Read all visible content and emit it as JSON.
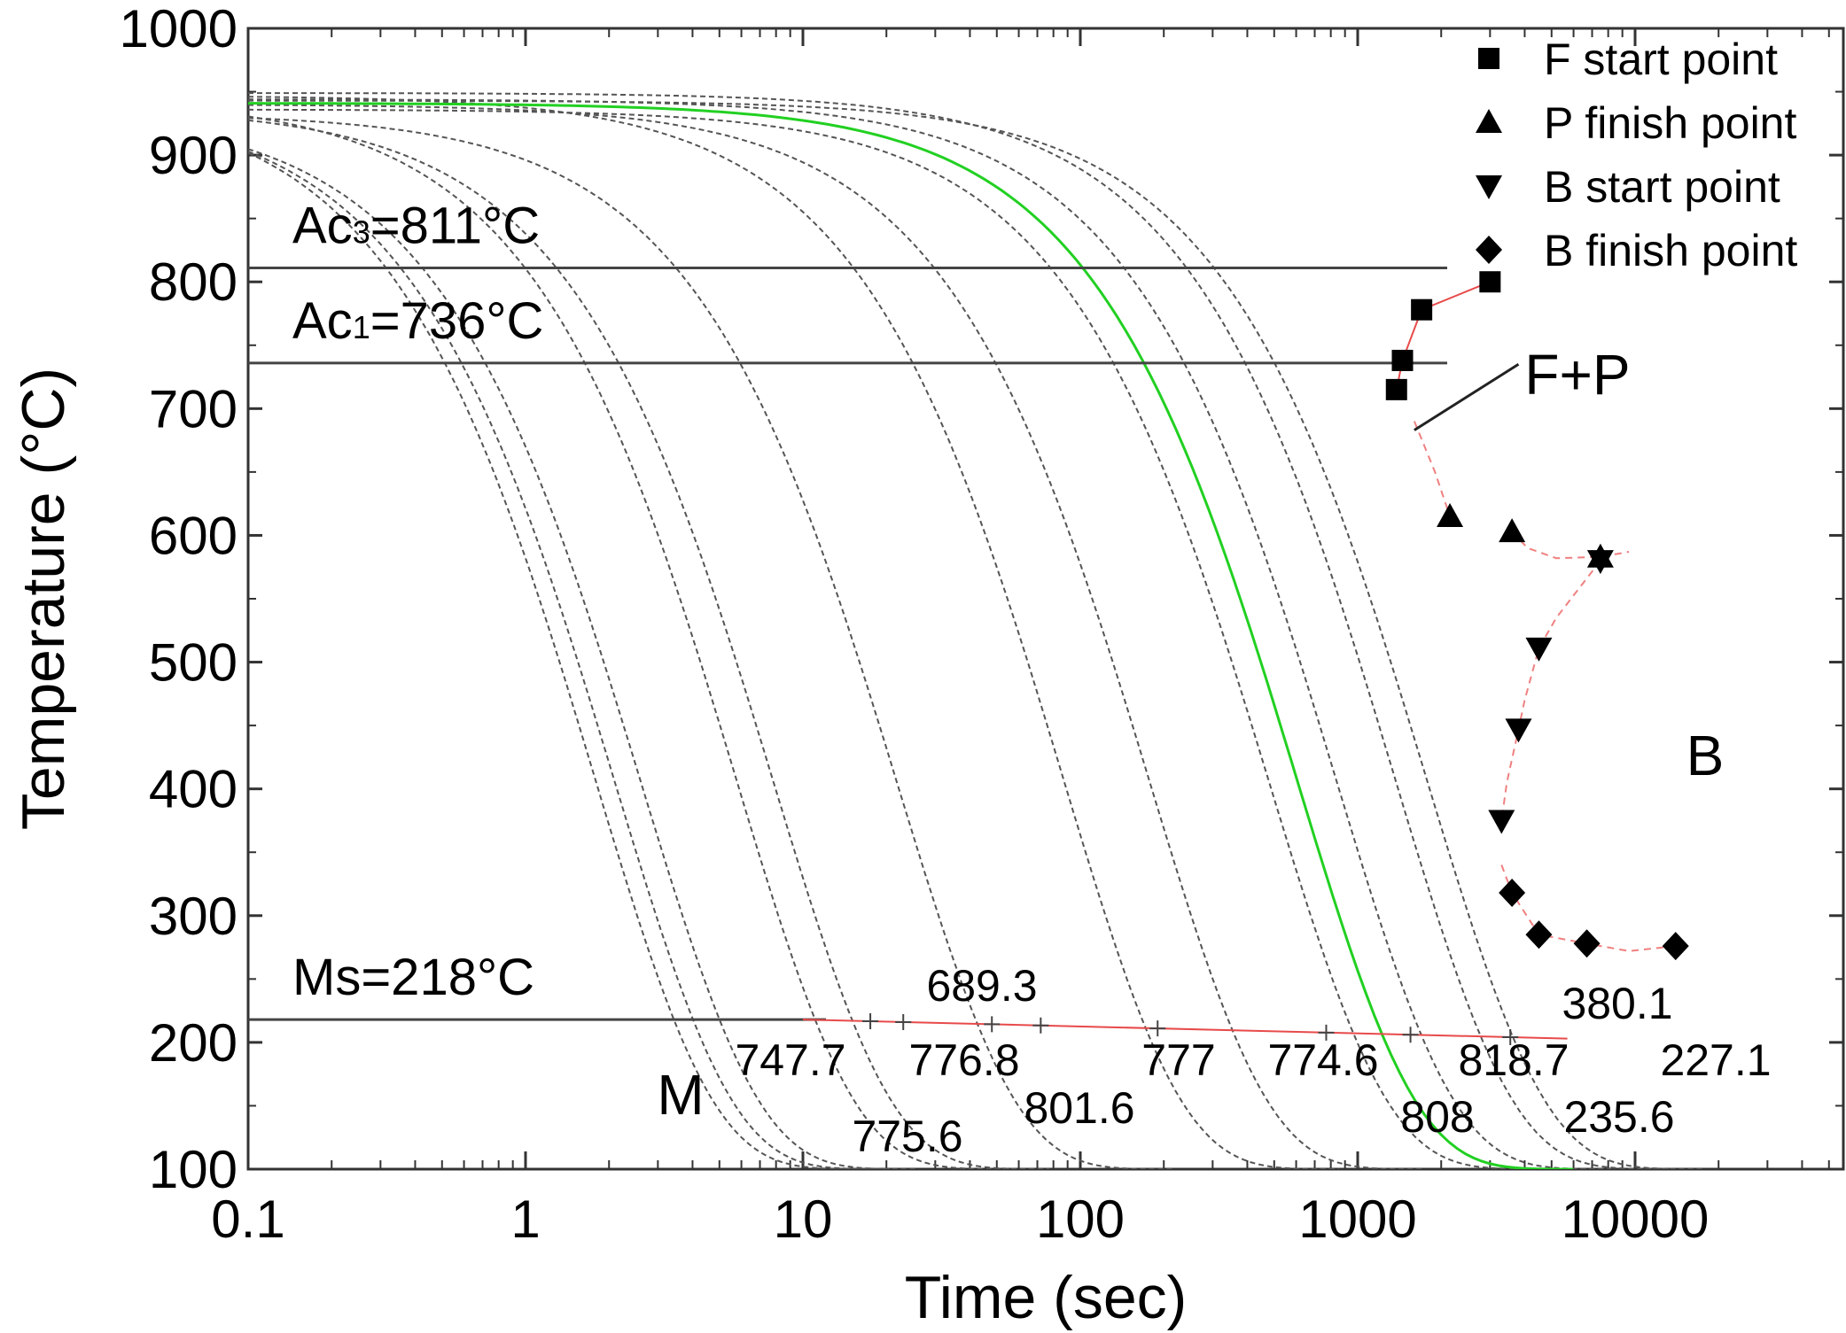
{
  "chart_data": {
    "type": "line",
    "title": "",
    "xlabel": "Time (sec)",
    "ylabel": "Temperature (°C)",
    "xscale": "log",
    "xlim": [
      0.1,
      50000
    ],
    "ylim": [
      100,
      1000
    ],
    "x_ticks": [
      "0.1",
      "1",
      "10",
      "100",
      "1000",
      "10000"
    ],
    "y_ticks": [
      "100",
      "200",
      "300",
      "400",
      "500",
      "600",
      "700",
      "800",
      "900",
      "1000"
    ],
    "reference_lines": [
      {
        "name": "Ac3",
        "label": "Ac3=811°C",
        "value": 811
      },
      {
        "name": "Ac1",
        "label": "Ac1=736°C",
        "value": 736
      },
      {
        "name": "Ms",
        "label": "Ms=218°C",
        "value": 218
      }
    ],
    "cooling_curves": [
      {
        "label": "747.7",
        "t_end": 17
      },
      {
        "label": "775.6",
        "t_end": 20
      },
      {
        "label": "776.8",
        "t_end": 25
      },
      {
        "label": "689.3",
        "t_end": 55
      },
      {
        "label": "801.6",
        "t_end": 75
      },
      {
        "label": "777",
        "t_end": 210
      },
      {
        "label": "774.6",
        "t_end": 830
      },
      {
        "label": "808",
        "t_end": 1700
      },
      {
        "label": "818.7",
        "t_end": 4600
      },
      {
        "label": "235.6",
        "t_end": 8000
      },
      {
        "label": "380.1",
        "t_end": 13000
      },
      {
        "label": "227.1",
        "t_end": 17000
      }
    ],
    "highlighted_curve": {
      "color": "#22d022",
      "t_end": 5800
    },
    "series": [
      {
        "name": "F start point",
        "marker": "square",
        "points": [
          [
            1380,
            715
          ],
          [
            1450,
            738
          ],
          [
            1700,
            778
          ],
          [
            3000,
            800
          ]
        ]
      },
      {
        "name": "P finish point",
        "marker": "triangle-up",
        "points": [
          [
            2150,
            615
          ],
          [
            3600,
            603
          ],
          [
            7500,
            583
          ]
        ]
      },
      {
        "name": "B start point",
        "marker": "triangle-down",
        "points": [
          [
            7500,
            580
          ],
          [
            4500,
            511
          ],
          [
            3800,
            447
          ],
          [
            3300,
            375
          ]
        ]
      },
      {
        "name": "B finish point",
        "marker": "diamond",
        "points": [
          [
            3600,
            318
          ],
          [
            4500,
            285
          ],
          [
            6700,
            278
          ],
          [
            14000,
            276
          ]
        ]
      }
    ],
    "regions": [
      "F+P",
      "B",
      "M"
    ],
    "legend_position": "top-right"
  }
}
